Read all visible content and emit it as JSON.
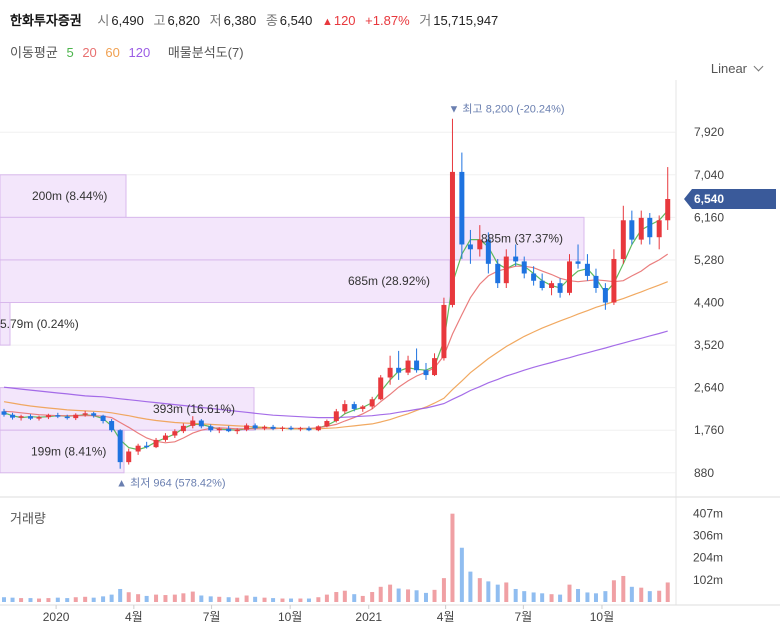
{
  "header": {
    "name": "한화투자증권",
    "open_label": "시",
    "open": "6,490",
    "high_label": "고",
    "high": "6,820",
    "low_label": "저",
    "low": "6,380",
    "close_label": "종",
    "close": "6,540",
    "change_arrow": "▲",
    "change": "120",
    "change_pct": "+1.87%",
    "volume_label": "거",
    "volume": "15,715,947"
  },
  "indicators": {
    "label": "이동평균",
    "ma5": "5",
    "ma20": "20",
    "ma60": "60",
    "ma120": "120",
    "vp_label": "매물분석도(7)"
  },
  "scale_selector": {
    "label": "Linear"
  },
  "volume_panel": {
    "title": "거래량"
  },
  "colors": {
    "up": "#e8383d",
    "down": "#1e73e0",
    "ma5": "#4cb44c",
    "ma20": "#e87070",
    "ma60": "#f0a050",
    "ma120": "#9b5de5",
    "profile_fill": "#f3e6fb",
    "profile_border": "#d8b8ec",
    "price_tag": "#3a5a9a"
  },
  "chart_data": {
    "type": "candlestick",
    "price_axis": {
      "ticks": [
        880,
        1760,
        2640,
        3520,
        4400,
        5280,
        6160,
        7040,
        7920
      ],
      "tick_labels": [
        "880",
        "1,760",
        "2,640",
        "3,520",
        "4,400",
        "5,280",
        "6,160",
        "7,040",
        "7,920"
      ],
      "range": [
        400,
        9000
      ]
    },
    "volume_axis": {
      "ticks": [
        102,
        204,
        306,
        407
      ],
      "tick_labels": [
        "102m",
        "204m",
        "306m",
        "407m"
      ],
      "range": [
        0,
        470
      ],
      "unit": "m"
    },
    "x_labels": [
      {
        "label": "2020",
        "month_index": 0
      },
      {
        "label": "4월",
        "month_index": 3
      },
      {
        "label": "7월",
        "month_index": 6
      },
      {
        "label": "10월",
        "month_index": 9
      },
      {
        "label": "2021",
        "month_index": 12
      },
      {
        "label": "4월",
        "month_index": 15
      },
      {
        "label": "7월",
        "month_index": 18
      },
      {
        "label": "10월",
        "month_index": 21
      }
    ],
    "last_price": {
      "value": 6540,
      "label": "6,540"
    },
    "high_marker": {
      "value": 8200,
      "text": "▼ 최고 8,200 (-20.24%)"
    },
    "low_marker": {
      "value": 964,
      "text": "▲ 최저 964 (578.42%)"
    },
    "volume_profile": [
      {
        "low": 6160,
        "high": 7040,
        "label": "200m (8.44%)"
      },
      {
        "low": 5280,
        "high": 6160,
        "label": "885m (37.37%)"
      },
      {
        "low": 4400,
        "high": 5280,
        "label": "685m (28.92%)"
      },
      {
        "low": 3520,
        "high": 4400,
        "label": "5.79m (0.24%)"
      },
      {
        "low": 1760,
        "high": 2640,
        "label": "393m (16.61%)"
      },
      {
        "low": 880,
        "high": 1760,
        "label": "199m (8.41%)"
      }
    ],
    "candles": [
      [
        "2019-11-01",
        2150,
        2200,
        2040,
        2080,
        22
      ],
      [
        "2019-11-11",
        2080,
        2120,
        1980,
        2020,
        20
      ],
      [
        "2019-11-21",
        2020,
        2080,
        1960,
        2050,
        18
      ],
      [
        "2019-12-02",
        2050,
        2090,
        1970,
        2000,
        18
      ],
      [
        "2019-12-12",
        2000,
        2060,
        1960,
        2030,
        16
      ],
      [
        "2019-12-23",
        2030,
        2100,
        1990,
        2070,
        18
      ],
      [
        "2020-01-03",
        2070,
        2120,
        2010,
        2040,
        20
      ],
      [
        "2020-01-14",
        2040,
        2080,
        1980,
        2010,
        18
      ],
      [
        "2020-01-24",
        2010,
        2110,
        1970,
        2080,
        22
      ],
      [
        "2020-02-04",
        2080,
        2160,
        2040,
        2110,
        24
      ],
      [
        "2020-02-14",
        2110,
        2140,
        2020,
        2060,
        20
      ],
      [
        "2020-02-25",
        2060,
        2080,
        1900,
        1950,
        26
      ],
      [
        "2020-03-06",
        1950,
        1990,
        1720,
        1760,
        34
      ],
      [
        "2020-03-16",
        1760,
        1780,
        964,
        1100,
        60
      ],
      [
        "2020-03-26",
        1100,
        1380,
        1050,
        1320,
        45
      ],
      [
        "2020-04-06",
        1320,
        1480,
        1250,
        1440,
        36
      ],
      [
        "2020-04-16",
        1440,
        1520,
        1380,
        1410,
        28
      ],
      [
        "2020-04-27",
        1410,
        1600,
        1390,
        1560,
        34
      ],
      [
        "2020-05-08",
        1560,
        1700,
        1520,
        1650,
        32
      ],
      [
        "2020-05-19",
        1650,
        1780,
        1600,
        1740,
        34
      ],
      [
        "2020-05-29",
        1740,
        1900,
        1700,
        1850,
        40
      ],
      [
        "2020-06-09",
        1850,
        2050,
        1800,
        1960,
        48
      ],
      [
        "2020-06-19",
        1960,
        1990,
        1800,
        1840,
        30
      ],
      [
        "2020-06-30",
        1840,
        1880,
        1720,
        1760,
        26
      ],
      [
        "2020-07-10",
        1760,
        1820,
        1700,
        1790,
        24
      ],
      [
        "2020-07-21",
        1790,
        1850,
        1720,
        1740,
        22
      ],
      [
        "2020-07-31",
        1740,
        1800,
        1680,
        1770,
        20
      ],
      [
        "2020-08-11",
        1770,
        1900,
        1740,
        1860,
        30
      ],
      [
        "2020-08-21",
        1860,
        1900,
        1760,
        1800,
        24
      ],
      [
        "2020-09-01",
        1800,
        1860,
        1760,
        1830,
        20
      ],
      [
        "2020-09-11",
        1830,
        1870,
        1760,
        1790,
        18
      ],
      [
        "2020-09-22",
        1790,
        1840,
        1740,
        1810,
        16
      ],
      [
        "2020-10-02",
        1810,
        1850,
        1760,
        1780,
        16
      ],
      [
        "2020-10-13",
        1780,
        1830,
        1740,
        1800,
        16
      ],
      [
        "2020-10-23",
        1800,
        1840,
        1740,
        1760,
        16
      ],
      [
        "2020-11-03",
        1760,
        1860,
        1740,
        1840,
        22
      ],
      [
        "2020-11-13",
        1840,
        1980,
        1820,
        1950,
        34
      ],
      [
        "2020-11-24",
        1950,
        2200,
        1920,
        2150,
        46
      ],
      [
        "2020-12-04",
        2150,
        2380,
        2100,
        2300,
        52
      ],
      [
        "2020-12-15",
        2300,
        2350,
        2150,
        2200,
        36
      ],
      [
        "2020-12-25",
        2200,
        2280,
        2140,
        2250,
        28
      ],
      [
        "2021-01-05",
        2250,
        2450,
        2200,
        2400,
        46
      ],
      [
        "2021-01-15",
        2400,
        2900,
        2380,
        2850,
        70
      ],
      [
        "2021-01-26",
        2850,
        3300,
        2700,
        3050,
        80
      ],
      [
        "2021-02-05",
        3050,
        3400,
        2800,
        2950,
        62
      ],
      [
        "2021-02-16",
        2950,
        3300,
        2900,
        3200,
        58
      ],
      [
        "2021-02-26",
        3200,
        3450,
        2950,
        3000,
        54
      ],
      [
        "2021-03-09",
        3000,
        3150,
        2800,
        2900,
        42
      ],
      [
        "2021-03-19",
        2900,
        3350,
        2880,
        3250,
        56
      ],
      [
        "2021-03-30",
        3250,
        4500,
        3200,
        4350,
        110
      ],
      [
        "2021-04-09",
        4350,
        8200,
        4300,
        7100,
        407
      ],
      [
        "2021-04-20",
        7100,
        7500,
        5300,
        5600,
        250
      ],
      [
        "2021-04-30",
        5600,
        5900,
        5200,
        5500,
        140
      ],
      [
        "2021-05-11",
        5500,
        6000,
        5350,
        5700,
        110
      ],
      [
        "2021-05-21",
        5700,
        5850,
        5000,
        5200,
        95
      ],
      [
        "2021-06-01",
        5200,
        5300,
        4700,
        4800,
        80
      ],
      [
        "2021-06-11",
        4800,
        5500,
        4700,
        5350,
        90
      ],
      [
        "2021-06-22",
        5350,
        5600,
        5150,
        5250,
        60
      ],
      [
        "2021-07-02",
        5250,
        5350,
        4900,
        5000,
        50
      ],
      [
        "2021-07-13",
        5000,
        5150,
        4750,
        4850,
        44
      ],
      [
        "2021-07-23",
        4850,
        5000,
        4650,
        4700,
        40
      ],
      [
        "2021-08-03",
        4700,
        4850,
        4550,
        4800,
        36
      ],
      [
        "2021-08-13",
        4800,
        4900,
        4500,
        4600,
        34
      ],
      [
        "2021-08-24",
        4600,
        5400,
        4550,
        5250,
        80
      ],
      [
        "2021-09-03",
        5250,
        5600,
        5100,
        5200,
        60
      ],
      [
        "2021-09-14",
        5200,
        5400,
        4850,
        4950,
        44
      ],
      [
        "2021-09-24",
        4950,
        5100,
        4600,
        4700,
        40
      ],
      [
        "2021-10-05",
        4700,
        4800,
        4250,
        4400,
        50
      ],
      [
        "2021-10-15",
        4400,
        5500,
        4350,
        5300,
        100
      ],
      [
        "2021-10-26",
        5300,
        6400,
        5200,
        6100,
        120
      ],
      [
        "2021-11-05",
        6100,
        6300,
        5600,
        5700,
        70
      ],
      [
        "2021-11-16",
        5700,
        6300,
        5600,
        6150,
        66
      ],
      [
        "2021-11-26",
        6150,
        6250,
        5600,
        5750,
        50
      ],
      [
        "2021-12-07",
        5750,
        6200,
        5500,
        6100,
        52
      ],
      [
        "2021-12-17",
        6100,
        7200,
        5900,
        6540,
        90
      ]
    ],
    "moving_averages": [
      {
        "period": 5,
        "values": [
          2120,
          2060,
          2020,
          2040,
          2030,
          2040,
          2060,
          2050,
          2060,
          2080,
          2060,
          2000,
          1850,
          1560,
          1400,
          1360,
          1410,
          1520,
          1600,
          1680,
          1800,
          1880,
          1880,
          1830,
          1780,
          1770,
          1760,
          1790,
          1810,
          1820,
          1810,
          1800,
          1790,
          1790,
          1790,
          1810,
          1860,
          1960,
          2100,
          2180,
          2230,
          2330,
          2560,
          2800,
          2980,
          3050,
          3020,
          3000,
          3080,
          3600,
          4800,
          5400,
          5700,
          5700,
          5550,
          5200,
          5100,
          5200,
          5150,
          5000,
          4850,
          4750,
          4700,
          4900,
          5050,
          5100,
          4900,
          4600,
          4800,
          5200,
          5600,
          5900,
          6000,
          6100,
          6300
        ]
      },
      {
        "period": 20,
        "values": [
          2150,
          2140,
          2120,
          2100,
          2080,
          2070,
          2060,
          2060,
          2060,
          2060,
          2060,
          2050,
          2020,
          1920,
          1820,
          1700,
          1600,
          1530,
          1500,
          1520,
          1600,
          1700,
          1760,
          1800,
          1810,
          1800,
          1790,
          1790,
          1790,
          1790,
          1790,
          1800,
          1800,
          1800,
          1800,
          1810,
          1840,
          1880,
          1950,
          2020,
          2100,
          2200,
          2350,
          2500,
          2650,
          2780,
          2880,
          2960,
          3050,
          3300,
          3750,
          4150,
          4500,
          4780,
          4950,
          5050,
          5100,
          5150,
          5150,
          5120,
          5050,
          4980,
          4900,
          4850,
          4830,
          4850,
          4870,
          4850,
          4830,
          4850,
          4950,
          5050,
          5180,
          5280,
          5400
        ]
      },
      {
        "period": 60,
        "values": [
          2350,
          2320,
          2290,
          2260,
          2240,
          2220,
          2200,
          2180,
          2170,
          2160,
          2150,
          2140,
          2120,
          2090,
          2060,
          2020,
          1990,
          1960,
          1940,
          1920,
          1910,
          1900,
          1890,
          1880,
          1870,
          1860,
          1850,
          1840,
          1830,
          1820,
          1810,
          1800,
          1790,
          1790,
          1790,
          1790,
          1800,
          1810,
          1830,
          1850,
          1870,
          1890,
          1930,
          1980,
          2040,
          2100,
          2170,
          2240,
          2320,
          2420,
          2600,
          2780,
          2950,
          3100,
          3240,
          3370,
          3490,
          3600,
          3700,
          3790,
          3870,
          3950,
          4020,
          4090,
          4160,
          4230,
          4300,
          4360,
          4420,
          4480,
          4550,
          4620,
          4690,
          4760,
          4830
        ]
      },
      {
        "period": 120,
        "values": [
          2650,
          2630,
          2610,
          2590,
          2570,
          2550,
          2530,
          2510,
          2490,
          2470,
          2460,
          2450,
          2430,
          2410,
          2390,
          2370,
          2350,
          2330,
          2310,
          2290,
          2270,
          2250,
          2230,
          2210,
          2190,
          2170,
          2150,
          2130,
          2110,
          2090,
          2070,
          2060,
          2050,
          2040,
          2030,
          2020,
          2020,
          2020,
          2030,
          2040,
          2050,
          2060,
          2080,
          2100,
          2130,
          2160,
          2190,
          2220,
          2260,
          2310,
          2400,
          2490,
          2580,
          2660,
          2740,
          2810,
          2880,
          2940,
          3000,
          3060,
          3110,
          3160,
          3210,
          3260,
          3310,
          3360,
          3410,
          3460,
          3510,
          3560,
          3610,
          3660,
          3710,
          3760,
          3810
        ]
      }
    ]
  }
}
